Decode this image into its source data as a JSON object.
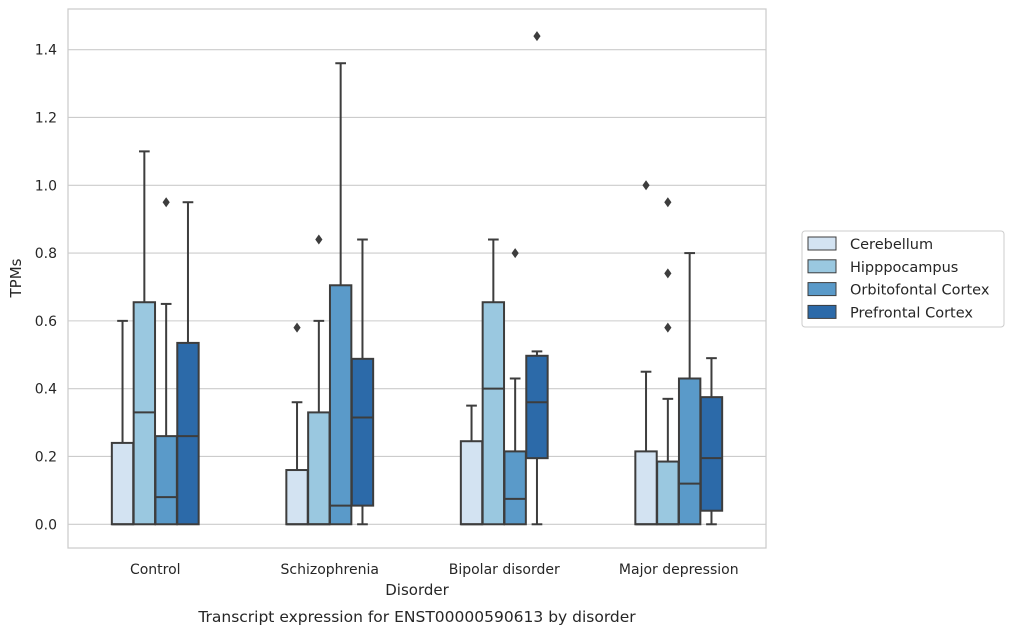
{
  "caption": "Transcript expression for ENST00000590613 by disorder",
  "chart_data": {
    "type": "boxplot",
    "title": "",
    "xlabel": "Disorder",
    "ylabel": "TPMs",
    "ylim": [
      -0.07,
      1.52
    ],
    "yticks": [
      0.0,
      0.2,
      0.4,
      0.6,
      0.8,
      1.0,
      1.2,
      1.4
    ],
    "ytick_labels": [
      "0.0",
      "0.2",
      "0.4",
      "0.6",
      "0.8",
      "1.0",
      "1.2",
      "1.4"
    ],
    "grid": "horizontal",
    "legend": "outside-right",
    "categories": [
      "Control",
      "Schizophrenia",
      "Bipolar disorder",
      "Major depression"
    ],
    "series": [
      {
        "name": "Cerebellum",
        "color": "#d3e3f2",
        "boxes": [
          {
            "whislo": 0.0,
            "q1": 0.0,
            "med": 0.0,
            "q3": 0.24,
            "whishi": 0.6,
            "fliers": []
          },
          {
            "whislo": 0.0,
            "q1": 0.0,
            "med": 0.0,
            "q3": 0.16,
            "whishi": 0.36,
            "fliers": [
              0.58
            ]
          },
          {
            "whislo": 0.0,
            "q1": 0.0,
            "med": 0.0,
            "q3": 0.245,
            "whishi": 0.35,
            "fliers": []
          },
          {
            "whislo": 0.0,
            "q1": 0.0,
            "med": 0.0,
            "q3": 0.215,
            "whishi": 0.45,
            "fliers": [
              1.0
            ]
          }
        ]
      },
      {
        "name": "Hipppocampus",
        "color": "#9ac8e0",
        "boxes": [
          {
            "whislo": 0.0,
            "q1": 0.0,
            "med": 0.33,
            "q3": 0.655,
            "whishi": 1.1,
            "fliers": []
          },
          {
            "whislo": 0.0,
            "q1": 0.0,
            "med": 0.0,
            "q3": 0.33,
            "whishi": 0.6,
            "fliers": [
              0.84
            ]
          },
          {
            "whislo": 0.0,
            "q1": 0.0,
            "med": 0.4,
            "q3": 0.655,
            "whishi": 0.84,
            "fliers": []
          },
          {
            "whislo": 0.0,
            "q1": 0.0,
            "med": 0.0,
            "q3": 0.185,
            "whishi": 0.37,
            "fliers": [
              0.58,
              0.74,
              0.95
            ]
          }
        ]
      },
      {
        "name": "Orbitofontal Cortex",
        "color": "#5a9ac9",
        "boxes": [
          {
            "whislo": 0.0,
            "q1": 0.0,
            "med": 0.08,
            "q3": 0.26,
            "whishi": 0.65,
            "fliers": [
              0.95
            ]
          },
          {
            "whislo": 0.0,
            "q1": 0.0,
            "med": 0.055,
            "q3": 0.705,
            "whishi": 1.36,
            "fliers": []
          },
          {
            "whislo": 0.0,
            "q1": 0.0,
            "med": 0.075,
            "q3": 0.215,
            "whishi": 0.43,
            "fliers": [
              0.8
            ]
          },
          {
            "whislo": 0.0,
            "q1": 0.0,
            "med": 0.12,
            "q3": 0.43,
            "whishi": 0.8,
            "fliers": []
          }
        ]
      },
      {
        "name": "Prefrontal Cortex",
        "color": "#2c6aa9",
        "boxes": [
          {
            "whislo": 0.0,
            "q1": 0.0,
            "med": 0.26,
            "q3": 0.535,
            "whishi": 0.95,
            "fliers": []
          },
          {
            "whislo": 0.0,
            "q1": 0.055,
            "med": 0.315,
            "q3": 0.488,
            "whishi": 0.84,
            "fliers": []
          },
          {
            "whislo": 0.0,
            "q1": 0.195,
            "med": 0.36,
            "q3": 0.497,
            "whishi": 0.51,
            "fliers": [
              1.44
            ]
          },
          {
            "whislo": 0.0,
            "q1": 0.04,
            "med": 0.195,
            "q3": 0.375,
            "whishi": 0.49,
            "fliers": []
          }
        ]
      }
    ]
  }
}
